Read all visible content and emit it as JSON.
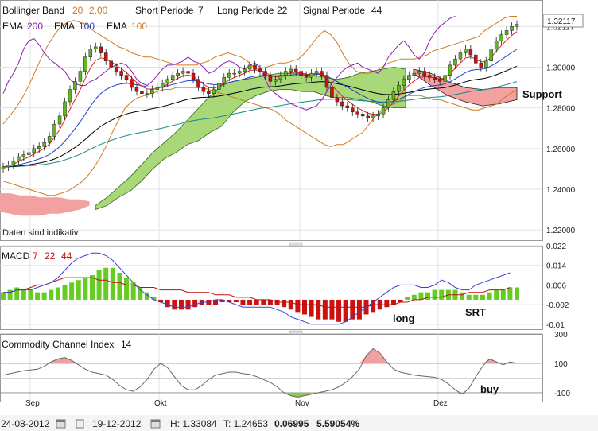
{
  "legend_main": {
    "bb_label": "Bollinger Band",
    "bb_p1": "20",
    "bb_p2": "2.00",
    "short_label": "Short Periode",
    "short_val": "7",
    "long_label": "Long Periode",
    "long_val": "22",
    "signal_label": "Signal Periode",
    "signal_val": "44",
    "ema1_label": "EMA",
    "ema1_val": "200",
    "ema2_label": "EMA",
    "ema2_val": "100",
    "ema3_label": "EMA",
    "ema3_val": "100"
  },
  "price_box": "1.32117",
  "disclaimer": "Daten sind indikativ",
  "macd_legend": {
    "label": "MACD",
    "p1": "7",
    "p2": "22",
    "p3": "44"
  },
  "cci_legend": {
    "label": "Commodity Channel Index",
    "p": "14"
  },
  "annotations": {
    "support": "Support",
    "long": "long",
    "srt": "SRT",
    "buy": "buy"
  },
  "x_axis": {
    "labels": [
      "Sep",
      "Okt",
      "Nov",
      "Dez"
    ]
  },
  "footer": {
    "from": "24-08-2012",
    "to": "19-12-2012",
    "high": "H: 1.33084",
    "low": "T: 1.24653",
    "change": "0.06995",
    "change_pct": "5.59054%"
  },
  "colors": {
    "up_candle": "#5fb81e",
    "down_candle": "#cc1111",
    "bollinger": "#d07a20",
    "ema200": "#8a20b0",
    "ema100_blue": "#2040d0",
    "ema100_teal": "#1a8a8a",
    "black_line": "#000000",
    "red_line": "#dd2222",
    "cloud_green": "#a8d878",
    "cloud_red": "#f2a0a0",
    "macd_pos": "#66cc22",
    "macd_neg": "#cc1111",
    "macd_line": "#3344cc",
    "signal_line": "#bb1111",
    "change_green": "#33aa00"
  },
  "chart_data": [
    {
      "type": "candlestick",
      "title": "",
      "ylim": [
        1.215,
        1.333
      ],
      "y_ticks": [
        1.22,
        1.24,
        1.26,
        1.28,
        1.3,
        1.32
      ],
      "y_tick_labels": [
        "1.22000",
        "1.24000",
        "1.26000",
        "1.28000",
        "1.30000",
        "1.32117"
      ],
      "x_labels": [
        "Sep",
        "Okt",
        "Nov",
        "Dez"
      ],
      "close": [
        1.251,
        1.252,
        1.254,
        1.256,
        1.257,
        1.258,
        1.26,
        1.261,
        1.263,
        1.266,
        1.272,
        1.276,
        1.283,
        1.289,
        1.293,
        1.298,
        1.305,
        1.309,
        1.31,
        1.307,
        1.303,
        1.3,
        1.298,
        1.296,
        1.294,
        1.29,
        1.288,
        1.287,
        1.287,
        1.289,
        1.29,
        1.292,
        1.294,
        1.296,
        1.297,
        1.298,
        1.297,
        1.294,
        1.29,
        1.288,
        1.287,
        1.289,
        1.292,
        1.295,
        1.297,
        1.297,
        1.298,
        1.299,
        1.301,
        1.299,
        1.298,
        1.296,
        1.293,
        1.294,
        1.296,
        1.298,
        1.299,
        1.298,
        1.296,
        1.295,
        1.297,
        1.298,
        1.296,
        1.29,
        1.285,
        1.283,
        1.281,
        1.28,
        1.278,
        1.277,
        1.276,
        1.275,
        1.276,
        1.277,
        1.28,
        1.284,
        1.288,
        1.291,
        1.294,
        1.296,
        1.297,
        1.298,
        1.296,
        1.295,
        1.294,
        1.293,
        1.296,
        1.301,
        1.304,
        1.307,
        1.309,
        1.306,
        1.302,
        1.3,
        1.303,
        1.309,
        1.313,
        1.316,
        1.318,
        1.32,
        1.321
      ],
      "band_upper": [
        1.272,
        1.276,
        1.28,
        1.285,
        1.291,
        1.298,
        1.305,
        1.311,
        1.316,
        1.32,
        1.322,
        1.323,
        1.322,
        1.321,
        1.318,
        1.316,
        1.314,
        1.312,
        1.31,
        1.309,
        1.307,
        1.306,
        1.305,
        1.305,
        1.304,
        1.303,
        1.302,
        1.301,
        1.301,
        1.301,
        1.301,
        1.302,
        1.303,
        1.305,
        1.306,
        1.307,
        1.306,
        1.305,
        1.303,
        1.3,
        1.299,
        1.3,
        1.301,
        1.302,
        1.302,
        1.303,
        1.304,
        1.307,
        1.311,
        1.315,
        1.318,
        1.316,
        1.312,
        1.306,
        1.301,
        1.298,
        1.297,
        1.297,
        1.298,
        1.3,
        1.302,
        1.303,
        1.304,
        1.304,
        1.304,
        1.305,
        1.306,
        1.308,
        1.309,
        1.31,
        1.311,
        1.312,
        1.313,
        1.314,
        1.315,
        1.318,
        1.32,
        1.322,
        1.324,
        1.325,
        1.325
      ],
      "band_lower": [
        1.244,
        1.243,
        1.242,
        1.241,
        1.24,
        1.239,
        1.238,
        1.237,
        1.237,
        1.238,
        1.239,
        1.241,
        1.243,
        1.246,
        1.25,
        1.255,
        1.261,
        1.268,
        1.274,
        1.28,
        1.283,
        1.285,
        1.286,
        1.287,
        1.288,
        1.289,
        1.289,
        1.29,
        1.29,
        1.29,
        1.29,
        1.29,
        1.289,
        1.288,
        1.287,
        1.286,
        1.285,
        1.284,
        1.283,
        1.282,
        1.281,
        1.28,
        1.279,
        1.277,
        1.274,
        1.272,
        1.27,
        1.268,
        1.266,
        1.264,
        1.262,
        1.261,
        1.262,
        1.262,
        1.264,
        1.266,
        1.268,
        1.272,
        1.276,
        1.279,
        1.281,
        1.282,
        1.284,
        1.286,
        1.286,
        1.286,
        1.285,
        1.284,
        1.284,
        1.283,
        1.282,
        1.281,
        1.28,
        1.279,
        1.279,
        1.28,
        1.281,
        1.282,
        1.285,
        1.287,
        1.289
      ]
    },
    {
      "type": "bar",
      "title": "MACD",
      "ylim": [
        -0.012,
        0.022
      ],
      "y_ticks": [
        0.022,
        0.014,
        0.006,
        -0.002,
        -0.01
      ],
      "y_tick_labels": [
        "0.022",
        "0.014",
        "0.006",
        "-0.002",
        "-0.01"
      ],
      "histogram": [
        0.003,
        0.004,
        0.005,
        0.004,
        0.004,
        0.003,
        0.003,
        0.004,
        0.005,
        0.006,
        0.007,
        0.008,
        0.009,
        0.01,
        0.012,
        0.013,
        0.013,
        0.011,
        0.009,
        0.007,
        0.005,
        0.003,
        0.001,
        -0.001,
        -0.003,
        -0.004,
        -0.004,
        -0.004,
        -0.003,
        -0.002,
        -0.002,
        -0.002,
        -0.001,
        -0.001,
        -0.001,
        -0.002,
        -0.002,
        -0.002,
        -0.002,
        -0.002,
        -0.002,
        -0.003,
        -0.004,
        -0.005,
        -0.006,
        -0.007,
        -0.008,
        -0.008,
        -0.008,
        -0.009,
        -0.009,
        -0.008,
        -0.008,
        -0.006,
        -0.005,
        -0.004,
        -0.003,
        -0.002,
        -0.001,
        0.001,
        0.002,
        0.003,
        0.003,
        0.004,
        0.004,
        0.004,
        0.004,
        0.003,
        0.002,
        0.002,
        0.002,
        0.003,
        0.004,
        0.004,
        0.005,
        0.005
      ],
      "macd_line": [
        0.003,
        0.003,
        0.004,
        0.004,
        0.004,
        0.005,
        0.006,
        0.007,
        0.009,
        0.012,
        0.015,
        0.017,
        0.018,
        0.019,
        0.019,
        0.018,
        0.016,
        0.013,
        0.01,
        0.007,
        0.004,
        0.002,
        0.0,
        -0.001,
        -0.002,
        -0.003,
        -0.003,
        -0.003,
        -0.002,
        -0.001,
        -0.001,
        0.0,
        0.0,
        -0.001,
        -0.002,
        -0.003,
        -0.003,
        -0.003,
        -0.003,
        -0.003,
        -0.004,
        -0.005,
        -0.007,
        -0.008,
        -0.009,
        -0.01,
        -0.01,
        -0.01,
        -0.01,
        -0.01,
        -0.009,
        -0.007,
        -0.005,
        -0.003,
        -0.001,
        0.001,
        0.003,
        0.005,
        0.006,
        0.006,
        0.006,
        0.005,
        0.005,
        0.006,
        0.008,
        0.007,
        0.005,
        0.004,
        0.004,
        0.006,
        0.007,
        0.008,
        0.009,
        0.01,
        0.011
      ],
      "signal_line": [
        0.003,
        0.003,
        0.004,
        0.004,
        0.005,
        0.006,
        0.006,
        0.007,
        0.008,
        0.009,
        0.009,
        0.009,
        0.009,
        0.009,
        0.008,
        0.008,
        0.007,
        0.007,
        0.006,
        0.006,
        0.005,
        0.005,
        0.005,
        0.004,
        0.004,
        0.004,
        0.004,
        0.003,
        0.003,
        0.003,
        0.003,
        0.002,
        0.002,
        0.002,
        0.001,
        0.001,
        0.001,
        0.0,
        0.0,
        0.0,
        -0.001,
        -0.001,
        -0.001,
        -0.002,
        -0.002,
        -0.002,
        -0.002,
        -0.003,
        -0.003,
        -0.003,
        -0.003,
        -0.003,
        -0.003,
        -0.003,
        -0.002,
        -0.002,
        -0.002,
        -0.002,
        -0.001,
        -0.001,
        0.0,
        0.0,
        0.001,
        0.001,
        0.001,
        0.002,
        0.002,
        0.002,
        0.003,
        0.003,
        0.003,
        0.004,
        0.004,
        0.004,
        0.005
      ]
    },
    {
      "type": "line",
      "title": "Commodity Channel Index",
      "ylim": [
        -160,
        300
      ],
      "y_ticks": [
        300,
        100,
        -100
      ],
      "y_tick_labels": [
        "300",
        "100",
        "-100"
      ],
      "cci": [
        20,
        30,
        40,
        50,
        55,
        60,
        80,
        110,
        130,
        140,
        120,
        90,
        60,
        40,
        30,
        20,
        -10,
        -50,
        -80,
        -90,
        -60,
        -10,
        60,
        100,
        70,
        10,
        -50,
        -80,
        -80,
        -50,
        -10,
        20,
        30,
        40,
        40,
        30,
        25,
        10,
        -10,
        -30,
        -60,
        -100,
        -120,
        -130,
        -120,
        -110,
        -100,
        -90,
        -80,
        -60,
        -30,
        10,
        60,
        150,
        200,
        170,
        110,
        60,
        40,
        30,
        20,
        15,
        10,
        5,
        -10,
        -40,
        -80,
        -110,
        -70,
        10,
        80,
        130,
        110,
        90,
        110,
        100
      ]
    }
  ]
}
